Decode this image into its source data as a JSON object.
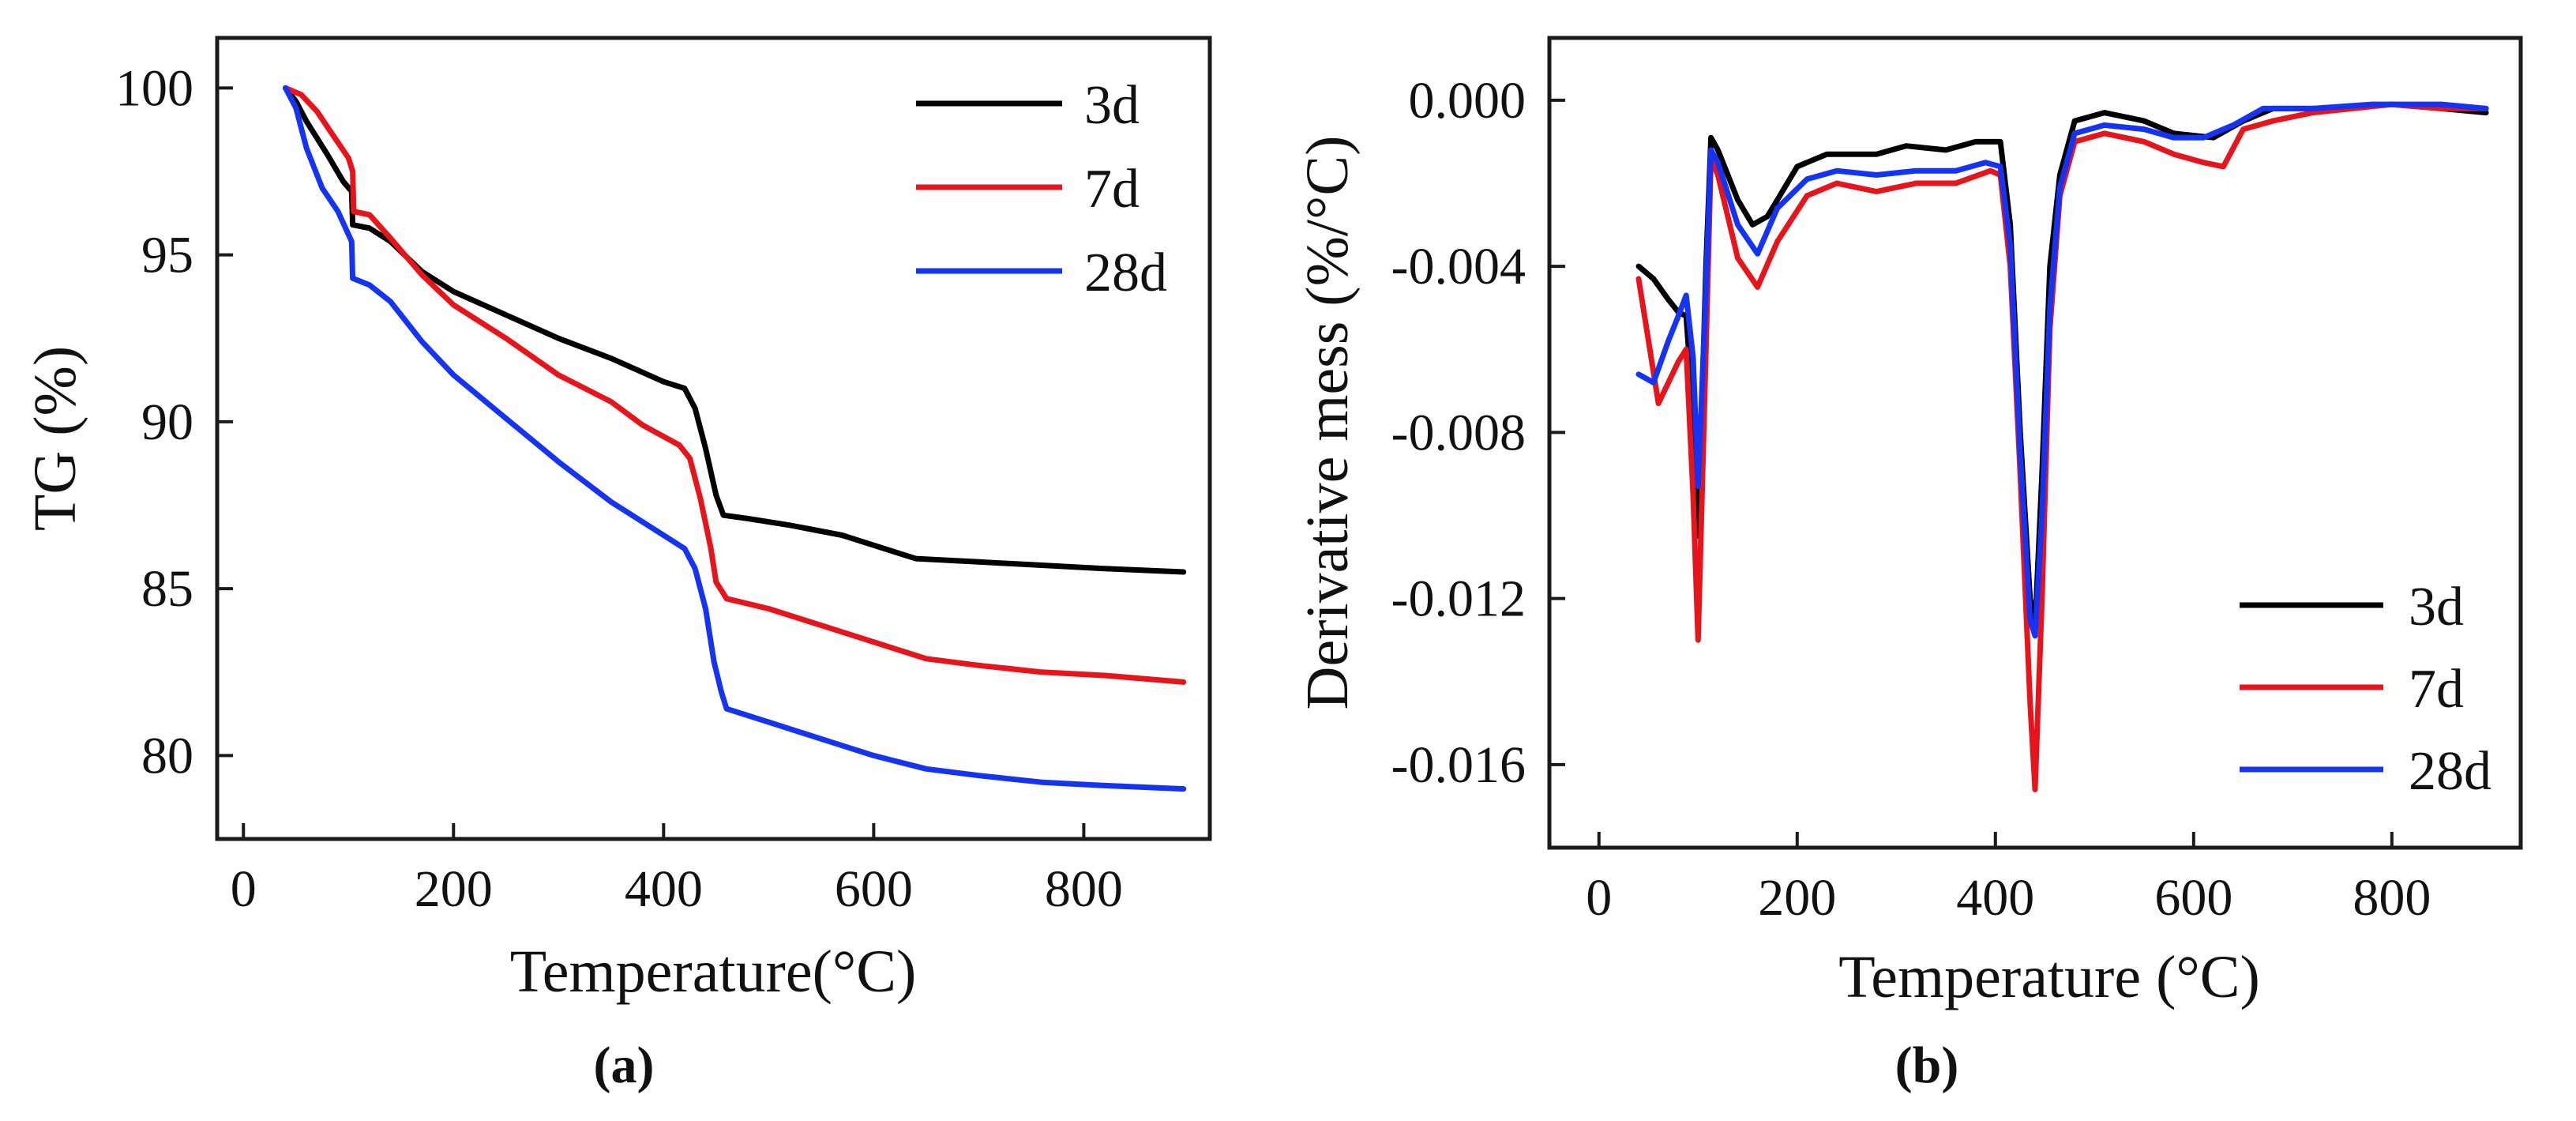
{
  "chart_data": [
    {
      "id": "a",
      "type": "line",
      "caption": "(a)",
      "xlabel": "Temperature(°C)",
      "ylabel": "TG (%)",
      "xlim": [
        -25,
        920
      ],
      "ylim": [
        77.5,
        101.5
      ],
      "xticks": [
        0,
        200,
        400,
        600,
        800
      ],
      "yticks": [
        80,
        85,
        90,
        95,
        100
      ],
      "xtick_labels": [
        "0",
        "200",
        "400",
        "600",
        "800"
      ],
      "ytick_labels": [
        "80",
        "85",
        "90",
        "95",
        "100"
      ],
      "legend_position": "top-right",
      "series": [
        {
          "name": "3d",
          "color": "#000000",
          "points": [
            [
              40,
              100
            ],
            [
              50,
              99.6
            ],
            [
              60,
              99
            ],
            [
              80,
              98
            ],
            [
              95,
              97.2
            ],
            [
              103,
              96.9
            ],
            [
              104,
              95.9
            ],
            [
              120,
              95.8
            ],
            [
              140,
              95.4
            ],
            [
              170,
              94.5
            ],
            [
              200,
              93.9
            ],
            [
              250,
              93.2
            ],
            [
              300,
              92.5
            ],
            [
              350,
              91.9
            ],
            [
              400,
              91.2
            ],
            [
              420,
              91
            ],
            [
              430,
              90.4
            ],
            [
              440,
              89.2
            ],
            [
              450,
              87.8
            ],
            [
              457,
              87.2
            ],
            [
              480,
              87.1
            ],
            [
              520,
              86.9
            ],
            [
              570,
              86.6
            ],
            [
              600,
              86.3
            ],
            [
              640,
              85.9
            ],
            [
              700,
              85.8
            ],
            [
              760,
              85.7
            ],
            [
              820,
              85.6
            ],
            [
              895,
              85.5
            ]
          ]
        },
        {
          "name": "7d",
          "color": "#e8141b",
          "points": [
            [
              40,
              100
            ],
            [
              55,
              99.8
            ],
            [
              70,
              99.3
            ],
            [
              85,
              98.6
            ],
            [
              100,
              97.9
            ],
            [
              104,
              97.5
            ],
            [
              105,
              96.3
            ],
            [
              120,
              96.2
            ],
            [
              140,
              95.5
            ],
            [
              170,
              94.4
            ],
            [
              200,
              93.5
            ],
            [
              250,
              92.5
            ],
            [
              300,
              91.4
            ],
            [
              350,
              90.6
            ],
            [
              380,
              89.9
            ],
            [
              415,
              89.3
            ],
            [
              425,
              88.9
            ],
            [
              435,
              87.7
            ],
            [
              445,
              86.2
            ],
            [
              450,
              85.2
            ],
            [
              460,
              84.7
            ],
            [
              500,
              84.4
            ],
            [
              550,
              83.9
            ],
            [
              600,
              83.4
            ],
            [
              650,
              82.9
            ],
            [
              700,
              82.7
            ],
            [
              760,
              82.5
            ],
            [
              820,
              82.4
            ],
            [
              895,
              82.2
            ]
          ]
        },
        {
          "name": "28d",
          "color": "#1533f5",
          "points": [
            [
              40,
              100
            ],
            [
              50,
              99.4
            ],
            [
              60,
              98.2
            ],
            [
              75,
              97
            ],
            [
              90,
              96.3
            ],
            [
              103,
              95.4
            ],
            [
              104,
              94.3
            ],
            [
              120,
              94.1
            ],
            [
              140,
              93.6
            ],
            [
              170,
              92.4
            ],
            [
              200,
              91.4
            ],
            [
              250,
              90.1
            ],
            [
              300,
              88.8
            ],
            [
              350,
              87.6
            ],
            [
              390,
              86.8
            ],
            [
              420,
              86.2
            ],
            [
              430,
              85.6
            ],
            [
              440,
              84.4
            ],
            [
              448,
              82.8
            ],
            [
              455,
              81.9
            ],
            [
              460,
              81.4
            ],
            [
              500,
              81
            ],
            [
              550,
              80.5
            ],
            [
              600,
              80
            ],
            [
              650,
              79.6
            ],
            [
              700,
              79.4
            ],
            [
              760,
              79.2
            ],
            [
              820,
              79.1
            ],
            [
              895,
              79
            ]
          ]
        }
      ]
    },
    {
      "id": "b",
      "type": "line",
      "caption": "(b)",
      "xlabel": "Temperature (°C)",
      "ylabel": "Derivative mess (%/°C)",
      "xlim": [
        -50,
        930
      ],
      "ylim": [
        -0.018,
        0.0015
      ],
      "xticks": [
        0,
        200,
        400,
        600,
        800
      ],
      "yticks": [
        0,
        -0.004,
        -0.008,
        -0.012,
        -0.016
      ],
      "xtick_labels": [
        "0",
        "200",
        "400",
        "600",
        "800"
      ],
      "ytick_labels": [
        "0.000",
        "-0.004",
        "-0.008",
        "-0.012",
        "-0.016"
      ],
      "legend_position": "bottom-right",
      "series": [
        {
          "name": "3d",
          "color": "#000000",
          "points": [
            [
              40,
              -0.004
            ],
            [
              55,
              -0.0043
            ],
            [
              70,
              -0.0048
            ],
            [
              80,
              -0.0051
            ],
            [
              88,
              -0.0052
            ],
            [
              95,
              -0.0075
            ],
            [
              100,
              -0.0105
            ],
            [
              108,
              -0.004
            ],
            [
              113,
              -0.0009
            ],
            [
              120,
              -0.0012
            ],
            [
              140,
              -0.0024
            ],
            [
              155,
              -0.003
            ],
            [
              170,
              -0.0028
            ],
            [
              200,
              -0.0016
            ],
            [
              230,
              -0.0013
            ],
            [
              280,
              -0.0013
            ],
            [
              310,
              -0.0011
            ],
            [
              350,
              -0.0012
            ],
            [
              380,
              -0.001
            ],
            [
              405,
              -0.001
            ],
            [
              415,
              -0.003
            ],
            [
              425,
              -0.008
            ],
            [
              435,
              -0.012
            ],
            [
              440,
              -0.0127
            ],
            [
              447,
              -0.009
            ],
            [
              455,
              -0.004
            ],
            [
              465,
              -0.0018
            ],
            [
              480,
              -0.0005
            ],
            [
              510,
              -0.0003
            ],
            [
              550,
              -0.0005
            ],
            [
              580,
              -0.0008
            ],
            [
              620,
              -0.0009
            ],
            [
              650,
              -0.0005
            ],
            [
              680,
              -0.0002
            ],
            [
              750,
              -0.0002
            ],
            [
              800,
              -0.0001
            ],
            [
              850,
              -0.0002
            ],
            [
              895,
              -0.0003
            ]
          ]
        },
        {
          "name": "7d",
          "color": "#e8141b",
          "points": [
            [
              40,
              -0.0043
            ],
            [
              60,
              -0.0073
            ],
            [
              80,
              -0.0063
            ],
            [
              88,
              -0.006
            ],
            [
              95,
              -0.0095
            ],
            [
              100,
              -0.013
            ],
            [
              108,
              -0.006
            ],
            [
              113,
              -0.0014
            ],
            [
              120,
              -0.0018
            ],
            [
              140,
              -0.0038
            ],
            [
              160,
              -0.0045
            ],
            [
              180,
              -0.0034
            ],
            [
              210,
              -0.0023
            ],
            [
              240,
              -0.002
            ],
            [
              280,
              -0.0022
            ],
            [
              320,
              -0.002
            ],
            [
              360,
              -0.002
            ],
            [
              395,
              -0.0017
            ],
            [
              405,
              -0.0018
            ],
            [
              415,
              -0.004
            ],
            [
              425,
              -0.009
            ],
            [
              435,
              -0.0145
            ],
            [
              440,
              -0.0166
            ],
            [
              447,
              -0.012
            ],
            [
              455,
              -0.0055
            ],
            [
              465,
              -0.0023
            ],
            [
              480,
              -0.001
            ],
            [
              510,
              -0.0008
            ],
            [
              550,
              -0.001
            ],
            [
              580,
              -0.0013
            ],
            [
              610,
              -0.0015
            ],
            [
              630,
              -0.0016
            ],
            [
              650,
              -0.0007
            ],
            [
              680,
              -0.0005
            ],
            [
              720,
              -0.0003
            ],
            [
              760,
              -0.0002
            ],
            [
              800,
              -0.0001
            ],
            [
              850,
              -0.0002
            ],
            [
              895,
              -0.0002
            ]
          ]
        },
        {
          "name": "28d",
          "color": "#1533f5",
          "points": [
            [
              40,
              -0.0066
            ],
            [
              55,
              -0.0068
            ],
            [
              70,
              -0.0058
            ],
            [
              80,
              -0.0052
            ],
            [
              88,
              -0.0047
            ],
            [
              95,
              -0.0062
            ],
            [
              100,
              -0.0093
            ],
            [
              108,
              -0.0045
            ],
            [
              113,
              -0.0012
            ],
            [
              120,
              -0.0015
            ],
            [
              140,
              -0.003
            ],
            [
              160,
              -0.0037
            ],
            [
              180,
              -0.0026
            ],
            [
              210,
              -0.0019
            ],
            [
              240,
              -0.0017
            ],
            [
              280,
              -0.0018
            ],
            [
              320,
              -0.0017
            ],
            [
              360,
              -0.0017
            ],
            [
              390,
              -0.0015
            ],
            [
              405,
              -0.0016
            ],
            [
              415,
              -0.0035
            ],
            [
              425,
              -0.0085
            ],
            [
              435,
              -0.0125
            ],
            [
              440,
              -0.0129
            ],
            [
              447,
              -0.01
            ],
            [
              455,
              -0.005
            ],
            [
              465,
              -0.0021
            ],
            [
              480,
              -0.0008
            ],
            [
              510,
              -0.0006
            ],
            [
              550,
              -0.0007
            ],
            [
              580,
              -0.0009
            ],
            [
              610,
              -0.0009
            ],
            [
              640,
              -0.0006
            ],
            [
              670,
              -0.0002
            ],
            [
              720,
              -0.0002
            ],
            [
              780,
              -0.0001
            ],
            [
              850,
              -0.0001
            ],
            [
              895,
              -0.0002
            ]
          ]
        }
      ]
    }
  ]
}
